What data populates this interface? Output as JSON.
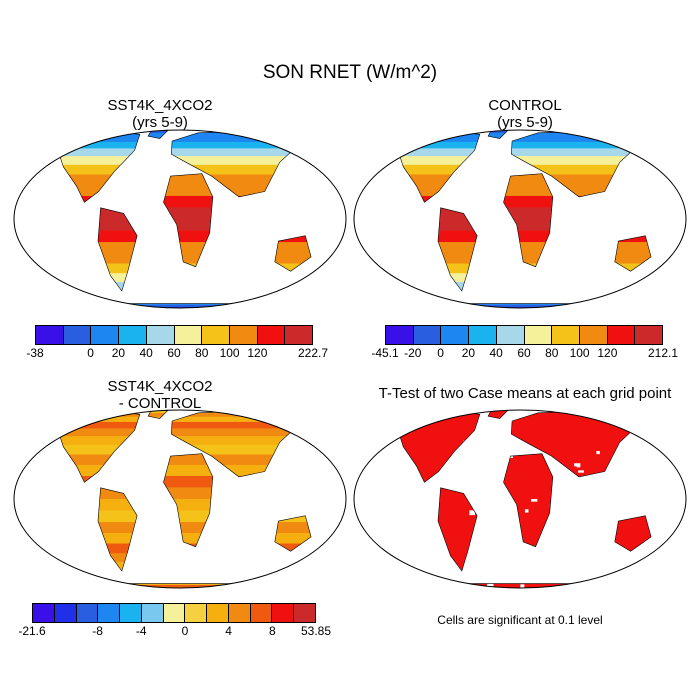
{
  "title": "SON RNET (W/m^2)",
  "panels": [
    {
      "id": "sst4k",
      "title_line1": "SST4K_4XCO2",
      "title_line2": "(yrs 5-9)",
      "colorbar": {
        "colors": [
          "#3a10e8",
          "#2a5ee0",
          "#1e86f0",
          "#1ab3f0",
          "#a6d8ea",
          "#f5f19a",
          "#f5c21a",
          "#f08a10",
          "#f01010",
          "#cc2a2a"
        ],
        "labels": [
          "-38",
          "0",
          "20",
          "40",
          "60",
          "80",
          "100",
          "120",
          "222.7"
        ],
        "label_boundaries": [
          0,
          2,
          3,
          4,
          5,
          6,
          7,
          8,
          10
        ]
      }
    },
    {
      "id": "control",
      "title_line1": "CONTROL",
      "title_line2": "(yrs 5-9)",
      "colorbar": {
        "colors": [
          "#3a10e8",
          "#2a5ee0",
          "#1e86f0",
          "#1ab3f0",
          "#a6d8ea",
          "#f5f19a",
          "#f5c21a",
          "#f08a10",
          "#f01010",
          "#cc2a2a"
        ],
        "labels": [
          "-45.1",
          "-20",
          "0",
          "20",
          "40",
          "60",
          "80",
          "100",
          "120",
          "212.1"
        ],
        "label_boundaries": [
          0,
          1,
          2,
          3,
          4,
          5,
          6,
          7,
          8,
          10
        ]
      }
    },
    {
      "id": "diff",
      "title_line1": "SST4K_4XCO2",
      "title_line2": "- CONTROL",
      "colorbar": {
        "colors": [
          "#3a10e8",
          "#2030e8",
          "#2a5ee0",
          "#1e86f0",
          "#1ab3f0",
          "#78c8f0",
          "#f5f19a",
          "#f5d040",
          "#f5b010",
          "#f08a10",
          "#f05a10",
          "#f01010",
          "#cc2a2a"
        ],
        "labels": [
          "-21.6",
          "-8",
          "-4",
          "0",
          "4",
          "8",
          "53.85"
        ],
        "label_boundaries": [
          0,
          3,
          5,
          7,
          9,
          11,
          13
        ]
      }
    },
    {
      "id": "ttest",
      "title_line1": "T-Test of two Case means at each grid point",
      "title_line2": "",
      "note": "Cells are significant at 0.1 level"
    }
  ]
}
